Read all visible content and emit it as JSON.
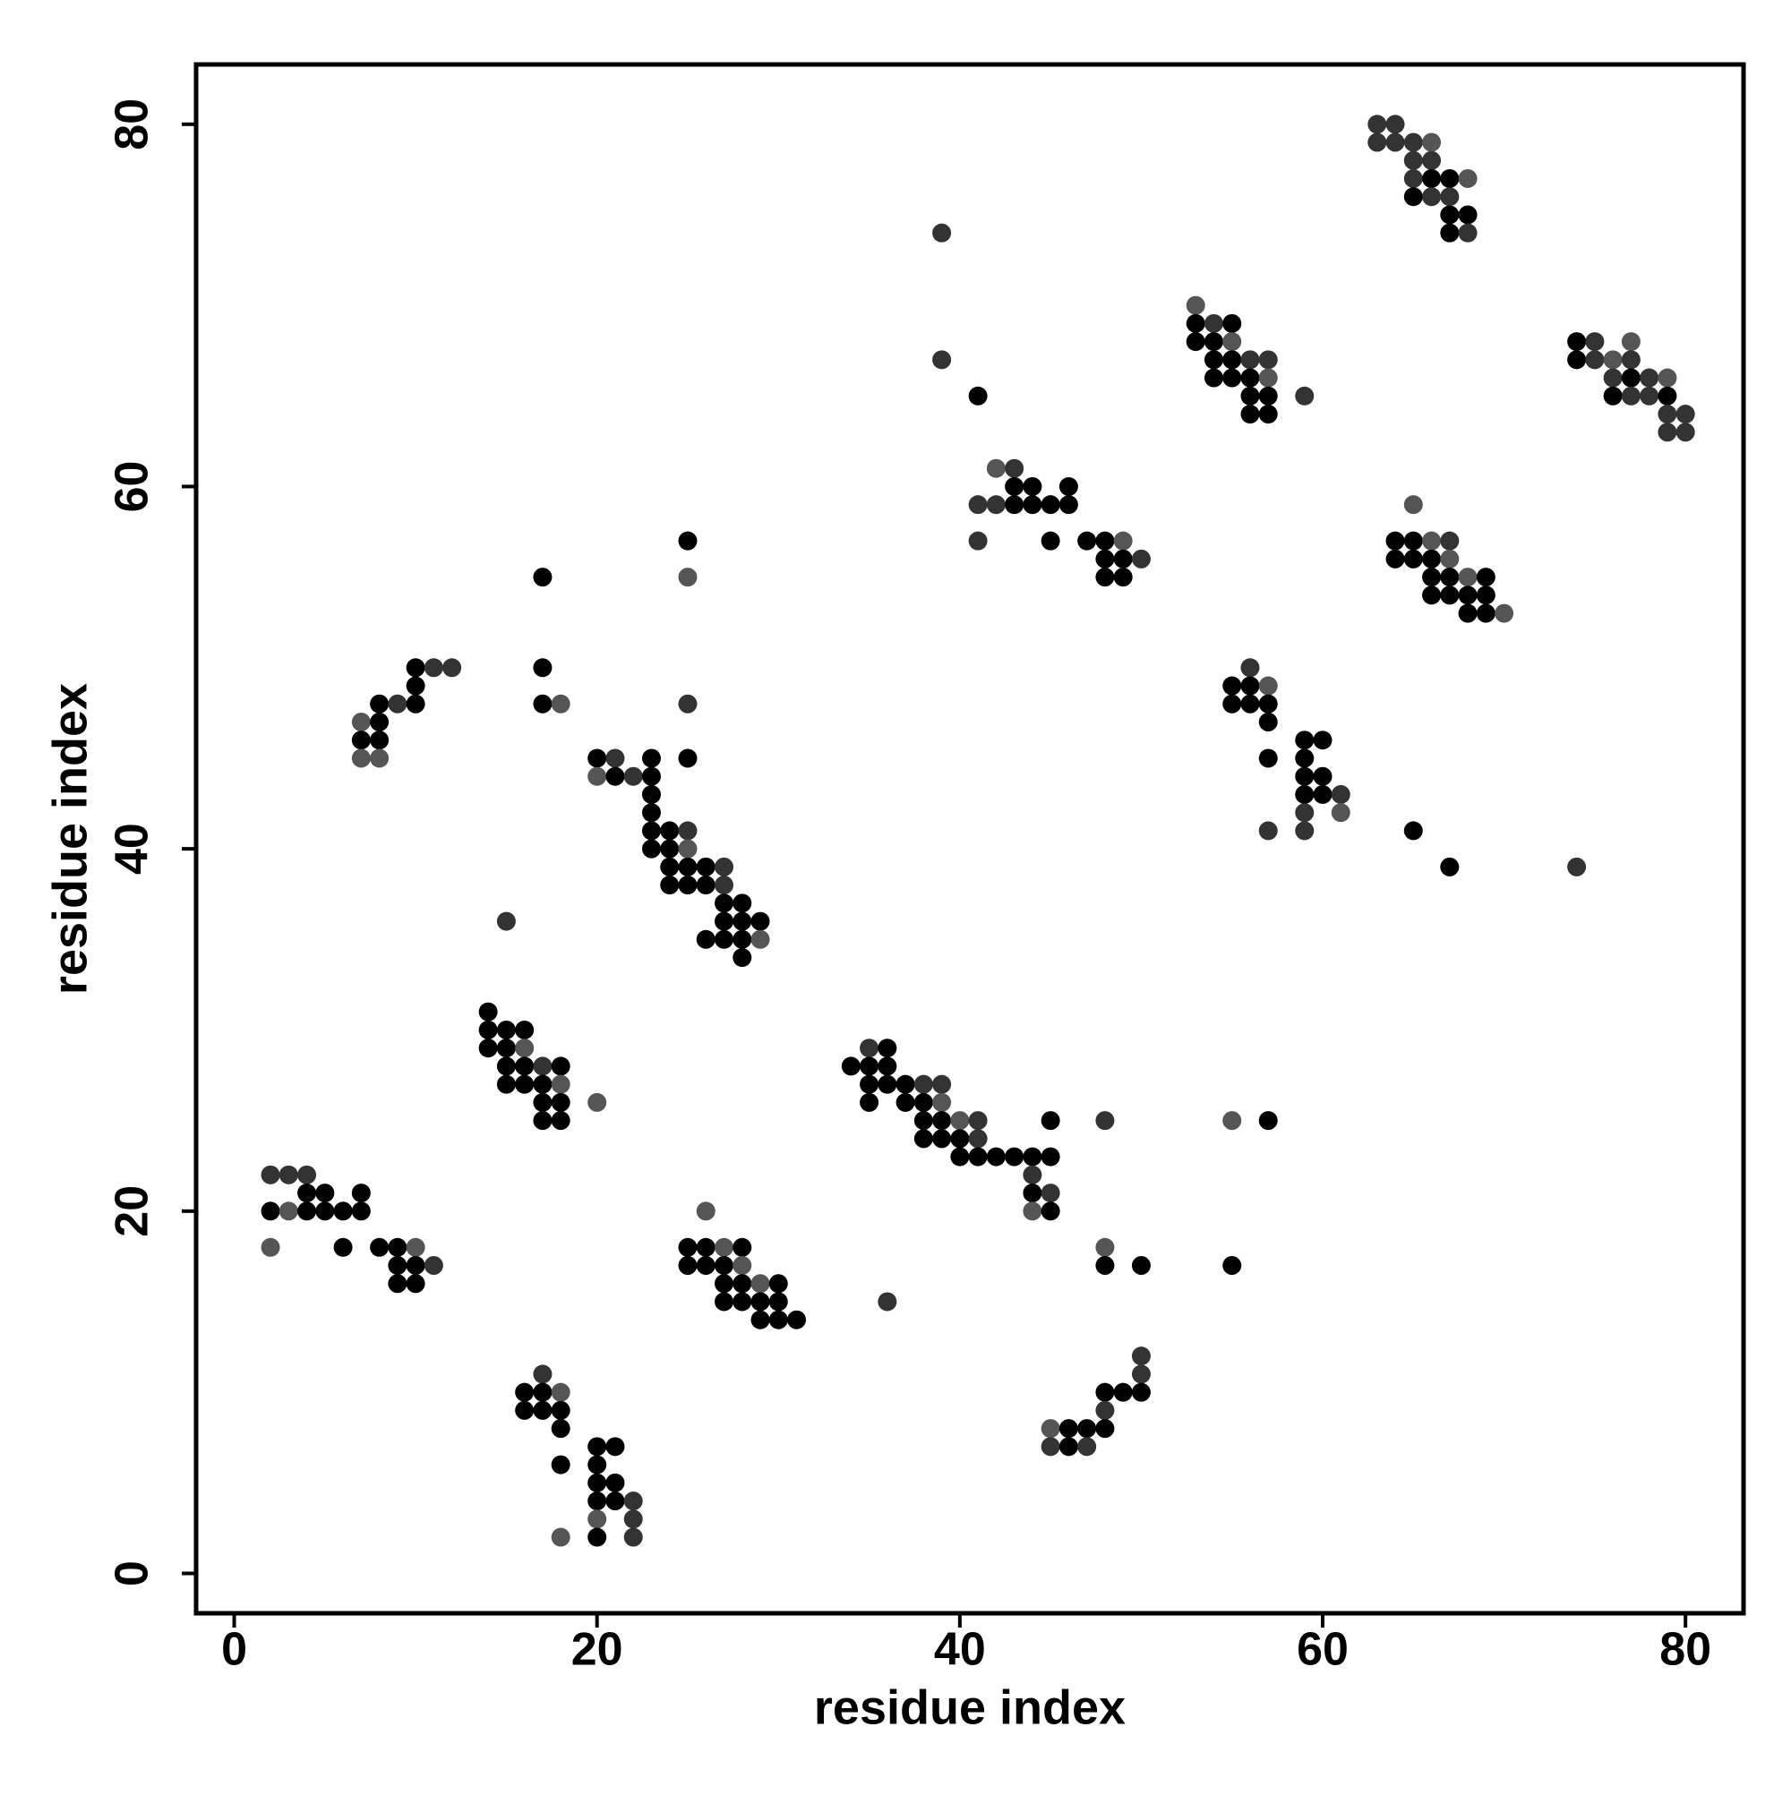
{
  "chart_data": {
    "type": "scatter",
    "x_label": "residue index",
    "y_label": "residue index",
    "xlim": [
      -2.1,
      83.2
    ],
    "ylim": [
      -2.2,
      83.3
    ],
    "xticks": [
      0,
      20,
      40,
      60,
      80
    ],
    "yticks": [
      0,
      20,
      40,
      60,
      80
    ],
    "palette": [
      "#000000",
      "#333333",
      "#555555"
    ],
    "x": [
      2,
      3,
      4,
      4,
      5,
      7,
      2,
      3,
      4,
      5,
      6,
      7,
      2,
      6,
      8,
      9,
      10,
      9,
      10,
      11,
      9,
      10,
      14,
      14,
      15,
      16,
      14,
      15,
      16,
      15,
      16,
      17,
      18,
      15,
      16,
      17,
      18,
      17,
      18,
      17,
      18,
      20,
      15,
      17,
      16,
      17,
      18,
      16,
      17,
      18,
      18,
      18,
      20,
      21,
      20,
      20,
      21,
      20,
      21,
      22,
      20,
      22,
      18,
      20,
      22,
      26,
      25,
      26,
      27,
      28,
      25,
      26,
      27,
      28,
      27,
      28,
      29,
      30,
      27,
      28,
      29,
      30,
      29,
      30,
      31,
      7,
      8,
      7,
      8,
      7,
      8,
      8,
      9,
      10,
      10,
      10,
      11,
      12,
      17,
      17,
      17,
      18,
      25,
      25,
      25,
      25,
      20,
      21,
      23,
      20,
      21,
      22,
      23,
      23,
      23,
      23,
      24,
      25,
      23,
      24,
      25,
      24,
      25,
      26,
      27,
      24,
      25,
      26,
      27,
      27,
      28,
      27,
      28,
      29,
      26,
      27,
      28,
      29,
      28,
      35,
      36,
      34,
      35,
      36,
      35,
      36,
      37,
      38,
      39,
      35,
      37,
      38,
      39,
      38,
      39,
      40,
      41,
      38,
      39,
      40,
      41,
      40,
      41,
      42,
      43,
      44,
      45,
      44,
      44,
      45,
      44,
      45,
      45,
      48,
      36,
      48,
      48,
      50,
      55,
      55,
      57,
      50,
      50,
      48,
      49,
      50,
      48,
      45,
      46,
      47,
      48,
      45,
      46,
      47,
      39,
      39,
      41,
      42,
      43,
      43,
      44,
      46,
      41,
      42,
      43,
      44,
      45,
      46,
      41,
      45,
      47,
      48,
      49,
      48,
      49,
      50,
      48,
      49,
      53,
      53,
      54,
      55,
      53,
      54,
      55,
      54,
      55,
      56,
      57,
      54,
      55,
      56,
      57,
      56,
      57,
      59,
      56,
      57,
      56,
      55,
      56,
      57,
      55,
      56,
      57,
      57,
      59,
      60,
      57,
      59,
      59,
      60,
      59,
      60,
      61,
      59,
      61,
      57,
      59,
      65,
      67,
      74,
      65,
      64,
      65,
      66,
      67,
      64,
      65,
      66,
      67,
      66,
      67,
      68,
      69,
      66,
      67,
      68,
      69,
      68,
      69,
      70,
      63,
      64,
      63,
      64,
      65,
      66,
      65,
      66,
      65,
      66,
      67,
      68,
      65,
      66,
      67,
      67,
      68,
      67,
      68,
      74,
      75,
      77,
      74,
      75,
      76,
      77,
      76,
      77,
      78,
      79,
      76,
      77,
      78,
      79,
      79,
      80,
      79,
      80
    ],
    "values": [
      22,
      22,
      22,
      21,
      21,
      21,
      20,
      20,
      20,
      20,
      20,
      20,
      18,
      18,
      18,
      18,
      18,
      17,
      17,
      17,
      16,
      16,
      31,
      30,
      30,
      30,
      29,
      29,
      29,
      28,
      28,
      28,
      28,
      27,
      27,
      27,
      27,
      26,
      26,
      25,
      25,
      26,
      36,
      11,
      10,
      10,
      10,
      9,
      9,
      9,
      8,
      6,
      7,
      7,
      6,
      5,
      5,
      4,
      4,
      4,
      3,
      3,
      2,
      2,
      2,
      20,
      18,
      18,
      18,
      18,
      17,
      17,
      17,
      17,
      16,
      16,
      16,
      16,
      15,
      15,
      15,
      15,
      14,
      14,
      14,
      47,
      47,
      46,
      46,
      45,
      45,
      48,
      48,
      48,
      49,
      50,
      50,
      50,
      55,
      50,
      48,
      48,
      57,
      55,
      48,
      45,
      45,
      45,
      45,
      44,
      44,
      44,
      44,
      43,
      42,
      41,
      41,
      41,
      40,
      40,
      40,
      39,
      39,
      39,
      39,
      38,
      38,
      38,
      38,
      37,
      37,
      36,
      36,
      36,
      35,
      35,
      35,
      35,
      34,
      29,
      29,
      28,
      28,
      28,
      27,
      27,
      27,
      27,
      27,
      26,
      26,
      26,
      26,
      25,
      25,
      25,
      25,
      24,
      24,
      24,
      24,
      23,
      23,
      23,
      23,
      23,
      23,
      22,
      21,
      21,
      20,
      20,
      25,
      25,
      15,
      18,
      17,
      17,
      17,
      25,
      25,
      12,
      11,
      10,
      10,
      10,
      9,
      8,
      8,
      8,
      8,
      7,
      7,
      7,
      74,
      67,
      65,
      61,
      61,
      60,
      60,
      60,
      59,
      59,
      59,
      59,
      59,
      59,
      57,
      57,
      57,
      57,
      57,
      56,
      56,
      56,
      55,
      55,
      70,
      69,
      69,
      69,
      68,
      68,
      68,
      67,
      67,
      67,
      67,
      66,
      66,
      66,
      66,
      65,
      65,
      65,
      64,
      64,
      50,
      49,
      49,
      49,
      48,
      48,
      48,
      47,
      46,
      46,
      45,
      45,
      44,
      44,
      43,
      43,
      43,
      42,
      42,
      41,
      41,
      41,
      39,
      39,
      59,
      57,
      57,
      57,
      57,
      56,
      56,
      56,
      56,
      55,
      55,
      55,
      55,
      54,
      54,
      54,
      54,
      53,
      53,
      53,
      80,
      80,
      79,
      79,
      79,
      79,
      78,
      78,
      77,
      77,
      77,
      77,
      76,
      76,
      76,
      75,
      75,
      74,
      74,
      68,
      68,
      68,
      67,
      67,
      67,
      67,
      66,
      66,
      66,
      66,
      65,
      65,
      65,
      65,
      64,
      64,
      63,
      63
    ],
    "point_shades": [
      1,
      1,
      1,
      0,
      0,
      0,
      0,
      2,
      0,
      0,
      0,
      0,
      2,
      0,
      0,
      0,
      2,
      0,
      0,
      1,
      0,
      0,
      0,
      0,
      0,
      0,
      0,
      0,
      2,
      0,
      0,
      1,
      0,
      0,
      0,
      0,
      2,
      0,
      0,
      0,
      0,
      2,
      1,
      1,
      0,
      0,
      2,
      0,
      0,
      0,
      0,
      0,
      0,
      0,
      0,
      0,
      0,
      0,
      0,
      1,
      2,
      1,
      2,
      0,
      1,
      2,
      0,
      0,
      2,
      0,
      0,
      0,
      0,
      2,
      0,
      0,
      2,
      0,
      0,
      0,
      0,
      0,
      0,
      0,
      0,
      2,
      0,
      0,
      0,
      2,
      2,
      0,
      1,
      0,
      0,
      0,
      1,
      1,
      0,
      0,
      0,
      2,
      0,
      2,
      1,
      0,
      0,
      1,
      0,
      2,
      0,
      1,
      0,
      0,
      0,
      0,
      0,
      1,
      0,
      0,
      2,
      0,
      0,
      0,
      1,
      0,
      0,
      0,
      1,
      0,
      0,
      0,
      0,
      0,
      0,
      0,
      0,
      2,
      0,
      1,
      0,
      0,
      0,
      0,
      0,
      0,
      0,
      1,
      1,
      0,
      0,
      0,
      2,
      0,
      0,
      2,
      1,
      0,
      0,
      0,
      1,
      0,
      0,
      0,
      0,
      0,
      0,
      1,
      0,
      1,
      2,
      0,
      0,
      1,
      1,
      2,
      0,
      0,
      0,
      2,
      0,
      1,
      1,
      0,
      0,
      0,
      1,
      2,
      0,
      0,
      0,
      1,
      0,
      1,
      1,
      1,
      0,
      2,
      1,
      0,
      0,
      0,
      1,
      1,
      0,
      0,
      0,
      0,
      1,
      0,
      0,
      0,
      2,
      0,
      0,
      1,
      0,
      0,
      2,
      0,
      1,
      0,
      0,
      0,
      2,
      0,
      0,
      1,
      1,
      0,
      0,
      0,
      2,
      0,
      0,
      1,
      0,
      0,
      1,
      0,
      0,
      2,
      0,
      0,
      0,
      0,
      0,
      0,
      0,
      0,
      0,
      0,
      0,
      0,
      1,
      1,
      2,
      1,
      1,
      0,
      0,
      1,
      2,
      0,
      0,
      2,
      1,
      0,
      0,
      0,
      2,
      0,
      0,
      2,
      0,
      0,
      0,
      0,
      0,
      0,
      0,
      2,
      1,
      1,
      1,
      1,
      1,
      2,
      1,
      1,
      1,
      0,
      0,
      2,
      0,
      1,
      1,
      0,
      0,
      0,
      1,
      0,
      1,
      2,
      0,
      1,
      2,
      1,
      1,
      0,
      1,
      2,
      0,
      1,
      1,
      0,
      1,
      1,
      1,
      1
    ]
  }
}
